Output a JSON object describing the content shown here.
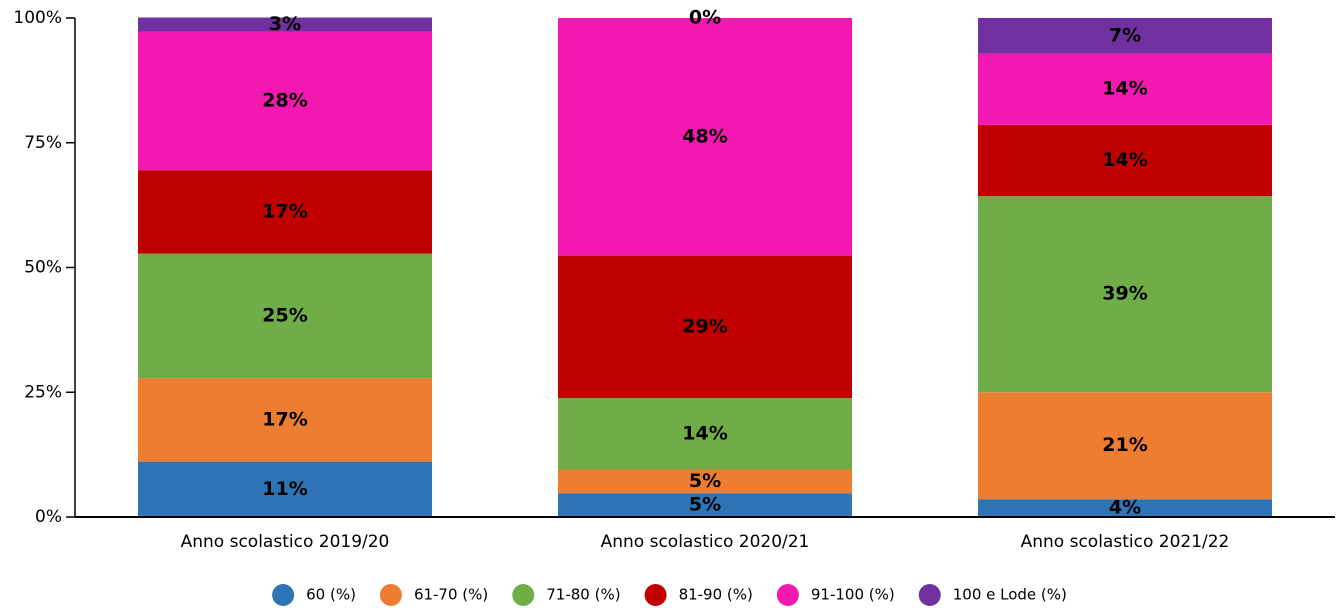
{
  "chart_data": {
    "type": "stacked_bar",
    "categories": [
      "Anno scolastico 2019/20",
      "Anno scolastico 2020/21",
      "Anno scolastico 2021/22"
    ],
    "series": [
      {
        "name": "60 (%)",
        "color": "#2e75b6",
        "values": [
          11.1,
          4.76,
          3.57
        ],
        "value_labels": [
          "11%",
          "5%",
          "4%"
        ]
      },
      {
        "name": "61-70 (%)",
        "color": "#ed7d31",
        "values": [
          16.7,
          4.76,
          21.43
        ],
        "value_labels": [
          "17%",
          "5%",
          "21%"
        ]
      },
      {
        "name": "71-80 (%)",
        "color": "#70ad47",
        "values": [
          25,
          14.29,
          39.29
        ],
        "value_labels": [
          "25%",
          "14%",
          "39%"
        ]
      },
      {
        "name": "81-90 (%)",
        "color": "#c00000",
        "values": [
          16.7,
          28.57,
          14.29
        ],
        "value_labels": [
          "17%",
          "29%",
          "14%"
        ]
      },
      {
        "name": "91-100 (%)",
        "color": "#f318b0",
        "values": [
          27.8,
          47.62,
          14.29
        ],
        "value_labels": [
          "28%",
          "48%",
          "14%"
        ]
      },
      {
        "name": "100 e Lode (%)",
        "color": "#7030a0",
        "values": [
          2.8,
          0,
          7.14
        ],
        "value_labels": [
          "3%",
          "0%",
          "7%"
        ]
      }
    ],
    "ylim": [
      0,
      100
    ],
    "yticks": [
      {
        "value": 0,
        "label": "0%"
      },
      {
        "value": 25,
        "label": "25%"
      },
      {
        "value": 50,
        "label": "50%"
      },
      {
        "value": 75,
        "label": "75%"
      },
      {
        "value": 100,
        "label": "100%"
      }
    ],
    "legend": "bottom"
  }
}
